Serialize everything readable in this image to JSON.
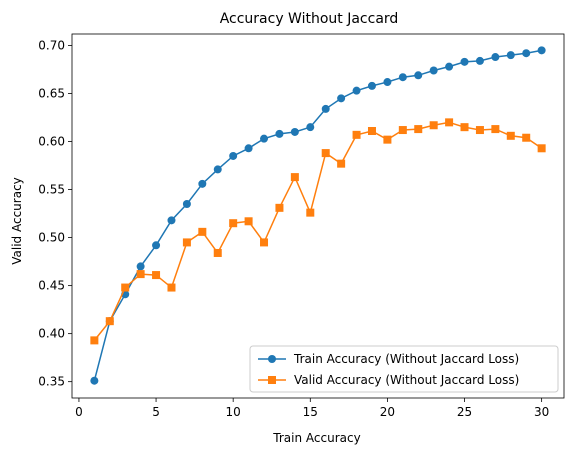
{
  "chart_data": {
    "type": "line",
    "title": "Accuracy Without Jaccard",
    "xlabel": "Train Accuracy",
    "ylabel": "Valid Accuracy",
    "xlim": [
      -0.45,
      31.45
    ],
    "ylim": [
      0.333,
      0.712
    ],
    "xticks": [
      0,
      5,
      10,
      15,
      20,
      25,
      30
    ],
    "yticks": [
      0.35,
      0.4,
      0.45,
      0.5,
      0.55,
      0.6,
      0.65,
      0.7
    ],
    "xtick_labels": [
      "0",
      "5",
      "10",
      "15",
      "20",
      "25",
      "30"
    ],
    "ytick_labels": [
      "0.35",
      "0.40",
      "0.45",
      "0.50",
      "0.55",
      "0.60",
      "0.65",
      "0.70"
    ],
    "grid": false,
    "legend_position": "lower-right",
    "x": [
      1,
      2,
      3,
      4,
      5,
      6,
      7,
      8,
      9,
      10,
      11,
      12,
      13,
      14,
      15,
      16,
      17,
      18,
      19,
      20,
      21,
      22,
      23,
      24,
      25,
      26,
      27,
      28,
      29,
      30
    ],
    "series": [
      {
        "name": "Train Accuracy (Without Jaccard Loss)",
        "color": "#1f77b4",
        "marker": "circle",
        "values": [
          0.351,
          0.413,
          0.441,
          0.47,
          0.492,
          0.518,
          0.535,
          0.556,
          0.571,
          0.585,
          0.593,
          0.603,
          0.608,
          0.61,
          0.615,
          0.634,
          0.645,
          0.653,
          0.658,
          0.662,
          0.667,
          0.669,
          0.674,
          0.678,
          0.683,
          0.684,
          0.688,
          0.69,
          0.692,
          0.695
        ]
      },
      {
        "name": "Valid Accuracy (Without Jaccard Loss)",
        "color": "#ff7f0e",
        "marker": "square",
        "values": [
          0.393,
          0.413,
          0.448,
          0.462,
          0.461,
          0.448,
          0.495,
          0.506,
          0.484,
          0.515,
          0.517,
          0.495,
          0.531,
          0.563,
          0.526,
          0.588,
          0.577,
          0.607,
          0.611,
          0.602,
          0.612,
          0.613,
          0.617,
          0.62,
          0.615,
          0.612,
          0.613,
          0.606,
          0.604,
          0.593
        ]
      }
    ]
  }
}
